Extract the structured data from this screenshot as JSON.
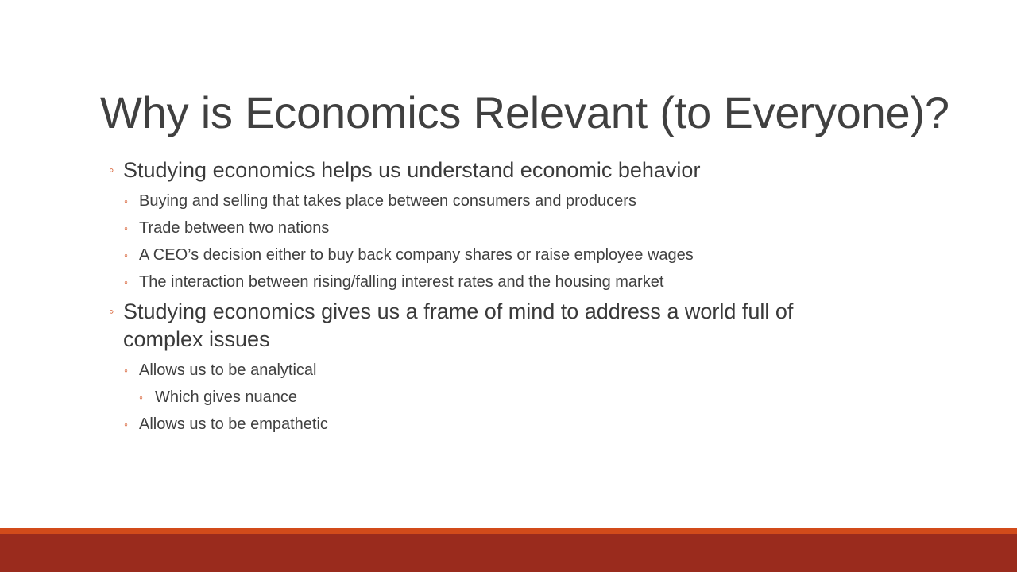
{
  "slide": {
    "title": "Why is Economics Relevant (to Everyone)?",
    "bullet_glyph": "◦",
    "bullets": [
      {
        "level": 1,
        "text": "Studying economics helps us understand economic behavior"
      },
      {
        "level": 2,
        "text": "Buying and selling that takes place between consumers and producers"
      },
      {
        "level": 2,
        "text": "Trade between two nations"
      },
      {
        "level": 2,
        "text": "A CEO’s decision either to buy back company shares or raise employee wages"
      },
      {
        "level": 2,
        "text": "The interaction between rising/falling interest rates and the housing market"
      },
      {
        "level": 1,
        "text": "Studying economics gives us a frame of mind to address a world full of"
      },
      {
        "level": 1,
        "text": "complex issues",
        "continuation": true
      },
      {
        "level": 2,
        "text": "Allows us to be analytical"
      },
      {
        "level": 3,
        "text": "Which gives nuance"
      },
      {
        "level": 2,
        "text": "Allows us to be empathetic"
      }
    ],
    "colors": {
      "accent": "#d24b1a",
      "footer_band": "#9a2b1d",
      "text": "#404040",
      "rule": "#7f7f7f"
    }
  }
}
